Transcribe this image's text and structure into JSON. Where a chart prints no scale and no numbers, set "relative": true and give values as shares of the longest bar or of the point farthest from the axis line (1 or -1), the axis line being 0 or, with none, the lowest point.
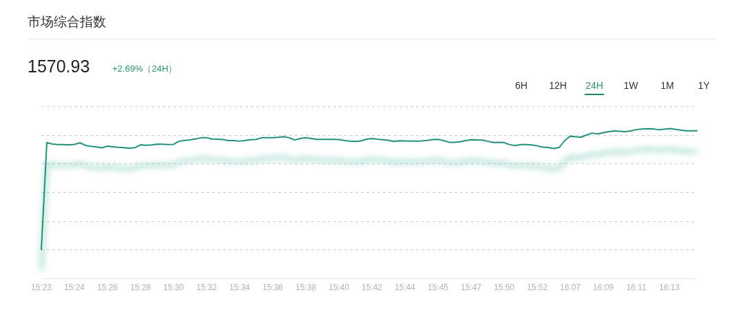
{
  "chart_data": {
    "type": "line",
    "title": "市场综合指数",
    "categories": [
      "15:23",
      null,
      null,
      null,
      null,
      null,
      "15:24",
      null,
      null,
      null,
      null,
      null,
      "15:26",
      null,
      null,
      null,
      null,
      null,
      "15:28",
      null,
      null,
      null,
      null,
      null,
      "15:30",
      null,
      null,
      null,
      null,
      null,
      "15:32",
      null,
      null,
      null,
      null,
      null,
      "15:34",
      null,
      null,
      null,
      null,
      null,
      "15:36",
      null,
      null,
      null,
      null,
      null,
      "15:38",
      null,
      null,
      null,
      null,
      null,
      "15:40",
      null,
      null,
      null,
      null,
      null,
      "15:42",
      null,
      null,
      null,
      null,
      null,
      "15:44",
      null,
      null,
      null,
      null,
      null,
      "15:45",
      null,
      null,
      null,
      null,
      null,
      "15:47",
      null,
      null,
      null,
      null,
      null,
      "15:50",
      null,
      null,
      null,
      null,
      null,
      "15:52",
      null,
      null,
      null,
      null,
      null,
      "16:07",
      null,
      null,
      null,
      null,
      null,
      "16:09",
      null,
      null,
      null,
      null,
      null,
      "16:11",
      null,
      null,
      null,
      null,
      null,
      "16:13",
      null,
      null,
      null,
      null,
      null
    ],
    "series": [
      {
        "color": "#23907a",
        "values": [
          0.194,
          0.906,
          0.897,
          0.894,
          0.893,
          0.891,
          0.895,
          0.905,
          0.888,
          0.882,
          0.877,
          0.872,
          0.883,
          0.879,
          0.875,
          0.873,
          0.869,
          0.873,
          0.892,
          0.889,
          0.891,
          0.896,
          0.896,
          0.894,
          0.895,
          0.916,
          0.921,
          0.925,
          0.931,
          0.939,
          0.94,
          0.93,
          0.929,
          0.927,
          0.92,
          0.92,
          0.916,
          0.921,
          0.926,
          0.928,
          0.939,
          0.94,
          0.94,
          0.942,
          0.946,
          0.939,
          0.924,
          0.934,
          0.94,
          0.934,
          0.928,
          0.928,
          0.928,
          0.928,
          0.927,
          0.921,
          0.916,
          0.914,
          0.918,
          0.929,
          0.934,
          0.929,
          0.926,
          0.922,
          0.914,
          0.919,
          0.918,
          0.916,
          0.917,
          0.918,
          0.921,
          0.927,
          0.928,
          0.92,
          0.909,
          0.908,
          0.912,
          0.92,
          0.926,
          0.925,
          0.923,
          0.916,
          0.907,
          0.909,
          0.907,
          0.893,
          0.887,
          0.894,
          0.894,
          0.891,
          0.885,
          0.876,
          0.874,
          0.867,
          0.874,
          0.92,
          0.95,
          0.945,
          0.943,
          0.958,
          0.97,
          0.965,
          0.973,
          0.98,
          0.984,
          0.982,
          0.98,
          0.984,
          0.993,
          0.997,
          0.999,
          0.998,
          0.993,
          0.996,
          1,
          0.996,
          0.99,
          0.986,
          0.985,
          0.985
        ]
      }
    ],
    "relative": true,
    "grid": "y",
    "line_style": "solid",
    "annotations": [
      "1570.93",
      "+2.69%（24H）",
      "6H",
      "12H",
      "24H",
      "1W",
      "1M",
      "1Y"
    ]
  }
}
